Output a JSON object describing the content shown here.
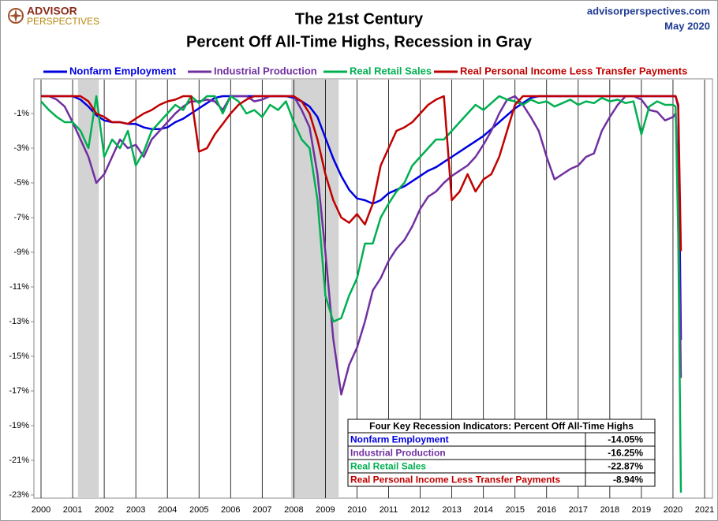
{
  "chart_data": {
    "type": "line",
    "brand": "ADVISOR",
    "brand_sub": "PERSPECTIVES",
    "site": "advisorperspectives.com",
    "date": "May 2020",
    "title": "The 21st Century",
    "subtitle": "Percent Off All-Time Highs, Recession in Gray",
    "x": [
      2000,
      2000.25,
      2000.5,
      2000.75,
      2001,
      2001.25,
      2001.5,
      2001.75,
      2002,
      2002.25,
      2002.5,
      2002.75,
      2003,
      2003.25,
      2003.5,
      2003.75,
      2004,
      2004.25,
      2004.5,
      2004.75,
      2005,
      2005.25,
      2005.5,
      2005.75,
      2006,
      2006.25,
      2006.5,
      2006.75,
      2007,
      2007.25,
      2007.5,
      2007.75,
      2008,
      2008.25,
      2008.5,
      2008.75,
      2009,
      2009.25,
      2009.5,
      2009.75,
      2010,
      2010.25,
      2010.5,
      2010.75,
      2011,
      2011.25,
      2011.5,
      2011.75,
      2012,
      2012.25,
      2012.5,
      2012.75,
      2013,
      2013.25,
      2013.5,
      2013.75,
      2014,
      2014.25,
      2014.5,
      2014.75,
      2015,
      2015.25,
      2015.5,
      2015.75,
      2016,
      2016.25,
      2016.5,
      2016.75,
      2017,
      2017.25,
      2017.5,
      2017.75,
      2018,
      2018.25,
      2018.5,
      2018.75,
      2019,
      2019.25,
      2019.5,
      2019.75,
      2020,
      2020.083,
      2020.167,
      2020.25
    ],
    "series": [
      {
        "name": "Nonfarm Employment",
        "color": "#0000e0",
        "values": [
          0,
          0,
          0,
          0,
          0,
          -0.2,
          -0.6,
          -1.1,
          -1.4,
          -1.5,
          -1.5,
          -1.6,
          -1.6,
          -1.8,
          -1.9,
          -1.9,
          -1.8,
          -1.5,
          -1.3,
          -1.0,
          -0.7,
          -0.4,
          -0.1,
          0,
          0,
          0,
          0,
          0,
          0,
          0,
          0,
          0,
          -0.1,
          -0.3,
          -0.6,
          -1.2,
          -2.4,
          -3.6,
          -4.6,
          -5.4,
          -5.9,
          -6.0,
          -6.2,
          -6.0,
          -5.6,
          -5.4,
          -5.2,
          -4.9,
          -4.6,
          -4.3,
          -4.1,
          -3.8,
          -3.5,
          -3.2,
          -2.9,
          -2.6,
          -2.3,
          -1.9,
          -1.5,
          -1.1,
          -0.7,
          -0.4,
          -0.1,
          0,
          0,
          0,
          0,
          0,
          0,
          0,
          0,
          0,
          0,
          0,
          0,
          0,
          0,
          0,
          0,
          0,
          0,
          0,
          -0.6,
          -14.05
        ]
      },
      {
        "name": "Industrial Production",
        "color": "#7030a0",
        "values": [
          0,
          0,
          -0.2,
          -0.6,
          -1.5,
          -2.5,
          -3.5,
          -5.0,
          -4.5,
          -3.5,
          -2.5,
          -3.0,
          -2.8,
          -3.5,
          -2.5,
          -2.0,
          -1.5,
          -1.0,
          -0.6,
          -0.3,
          -0.3,
          -0.2,
          -0.3,
          -0.8,
          0,
          0,
          0,
          -0.3,
          -0.2,
          0,
          0,
          0,
          0,
          -0.8,
          -1.8,
          -4.5,
          -9,
          -14,
          -17.2,
          -15.5,
          -14.5,
          -13,
          -11.2,
          -10.5,
          -9.5,
          -8.8,
          -8.3,
          -7.5,
          -6.5,
          -5.8,
          -5.5,
          -5.0,
          -4.6,
          -4.3,
          -4.0,
          -3.5,
          -2.8,
          -2.0,
          -1.0,
          -0.2,
          0,
          -0.5,
          -1.2,
          -2.0,
          -3.5,
          -4.8,
          -4.5,
          -4.2,
          -4.0,
          -3.5,
          -3.3,
          -2.0,
          -1.2,
          -0.5,
          0,
          0,
          -0.2,
          -0.8,
          -0.9,
          -1.4,
          -1.2,
          -1.0,
          -5.0,
          -16.25
        ]
      },
      {
        "name": "Real Retail Sales",
        "color": "#00b050",
        "values": [
          -0.3,
          -0.8,
          -1.2,
          -1.5,
          -1.5,
          -2.0,
          -3.0,
          0,
          -3.5,
          -2.5,
          -3.0,
          -2.0,
          -4.0,
          -3.2,
          -2.0,
          -1.5,
          -1.0,
          -0.5,
          -0.8,
          0,
          -0.4,
          0,
          0,
          -1.0,
          0,
          -0.3,
          -1.0,
          -0.8,
          -1.2,
          -0.5,
          -0.8,
          -0.3,
          -1.5,
          -2.5,
          -3.0,
          -6.0,
          -11.5,
          -13.0,
          -12.8,
          -11.5,
          -10.5,
          -8.5,
          -8.5,
          -7.0,
          -6.2,
          -5.5,
          -5.0,
          -4.0,
          -3.5,
          -3.0,
          -2.5,
          -2.5,
          -2.0,
          -1.5,
          -1.0,
          -0.5,
          -0.8,
          -0.4,
          0,
          -0.2,
          -0.3,
          -0.5,
          -0.2,
          -0.4,
          -0.3,
          -0.6,
          -0.4,
          -0.2,
          -0.5,
          -0.3,
          -0.4,
          -0.1,
          -0.3,
          -0.2,
          -0.4,
          -0.3,
          -2.2,
          -0.6,
          -0.3,
          -0.5,
          -0.5,
          -0.6,
          -8.0,
          -22.87
        ]
      },
      {
        "name": "Real Personal Income Less Transfer Payments",
        "color": "#c00000",
        "values": [
          0,
          0,
          0,
          0,
          0,
          0,
          -0.3,
          -1.0,
          -1.2,
          -1.5,
          -1.5,
          -1.6,
          -1.3,
          -1.0,
          -0.8,
          -0.5,
          -0.3,
          -0.2,
          0,
          0,
          -3.2,
          -3.0,
          -2.2,
          -1.6,
          -1.0,
          -0.5,
          -0.2,
          0,
          0,
          0,
          0,
          0,
          0,
          -0.3,
          -1.0,
          -2.5,
          -4.5,
          -6.0,
          -7.0,
          -7.3,
          -6.8,
          -7.4,
          -6.2,
          -4.0,
          -3.0,
          -2.0,
          -1.8,
          -1.5,
          -1.0,
          -0.5,
          -0.2,
          0,
          -6.0,
          -5.5,
          -4.5,
          -5.5,
          -4.8,
          -4.5,
          -3.5,
          -2.0,
          -0.5,
          0,
          0,
          0,
          0,
          0,
          0,
          0,
          0,
          0,
          0,
          0,
          0,
          0,
          0,
          0,
          0,
          0,
          0,
          0,
          0,
          0,
          -0.5,
          -8.94
        ]
      }
    ],
    "recessions": [
      [
        2001.17,
        2001.83
      ],
      [
        2007.92,
        2009.42
      ]
    ],
    "xlim": [
      2000,
      2021
    ],
    "xticks": [
      2000,
      2001,
      2002,
      2003,
      2004,
      2005,
      2006,
      2007,
      2008,
      2009,
      2010,
      2011,
      2012,
      2013,
      2014,
      2015,
      2016,
      2017,
      2018,
      2019,
      2020,
      2021
    ],
    "ylim": [
      -23,
      1
    ],
    "yticks": [
      {
        "value": -1,
        "label": "-1%"
      },
      {
        "value": -3,
        "label": "-3%"
      },
      {
        "value": -5,
        "label": "-5%"
      },
      {
        "value": -7,
        "label": "-7%"
      },
      {
        "value": -9,
        "label": "-9%"
      },
      {
        "value": -11,
        "label": "-11%"
      },
      {
        "value": -13,
        "label": "-13%"
      },
      {
        "value": -15,
        "label": "-15%"
      },
      {
        "value": -17,
        "label": "-17%"
      },
      {
        "value": -19,
        "label": "-19%"
      },
      {
        "value": -21,
        "label": "-21%"
      },
      {
        "value": -23,
        "label": "-23%"
      }
    ],
    "grid": true,
    "table": {
      "title": "Four Key Recession Indicators: Percent Off All-Time Highs",
      "values": [
        -14.05,
        -16.25,
        -22.87,
        -8.94
      ],
      "value_labels": [
        "-14.05%",
        "-16.25%",
        "-22.87%",
        "-8.94%"
      ]
    }
  }
}
